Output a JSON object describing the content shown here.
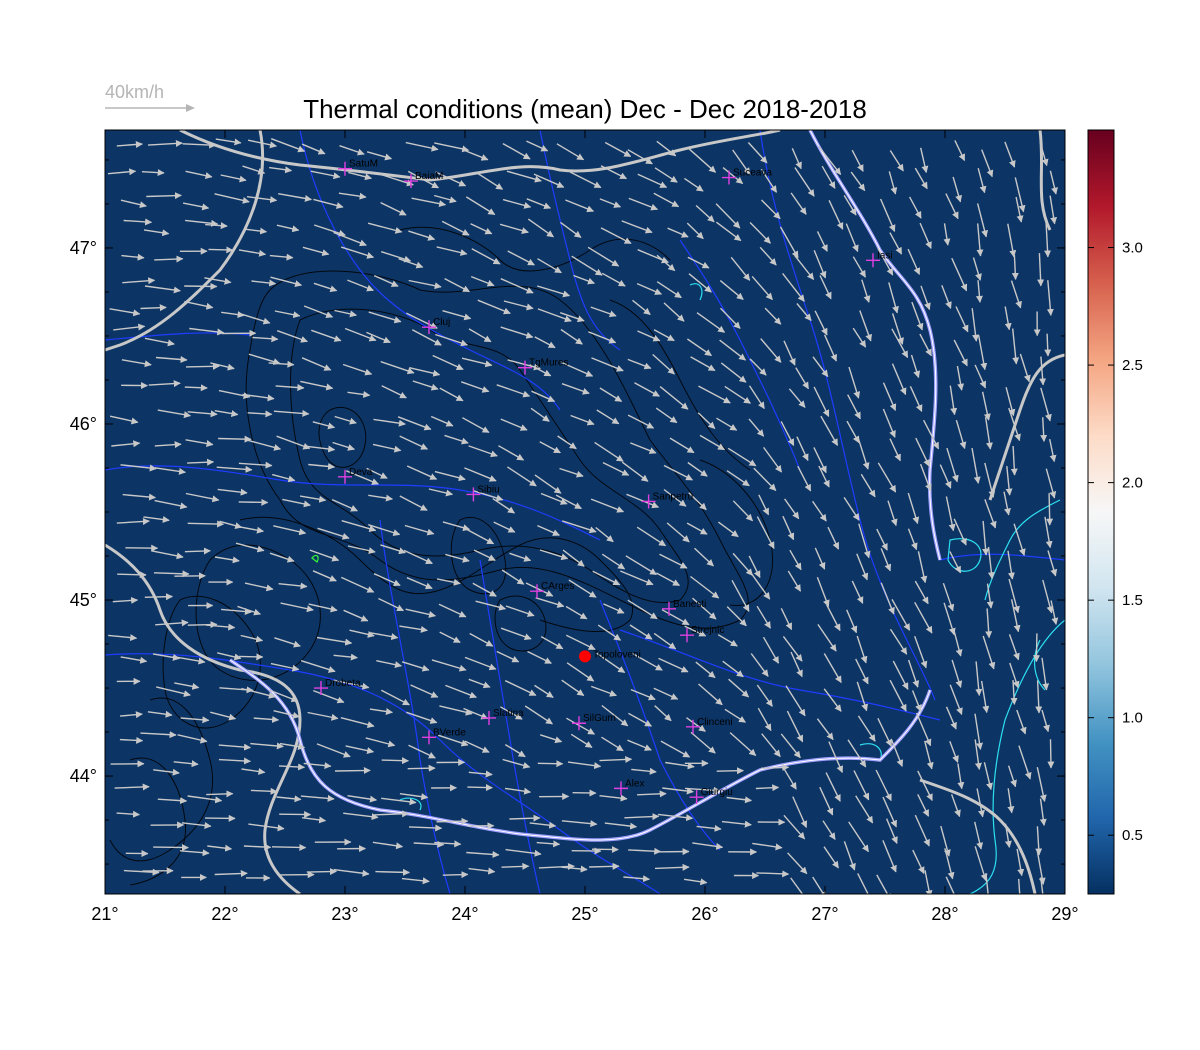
{
  "title": "Thermal conditions (mean) Dec - Dec  2018-2018",
  "wind_legend": {
    "label": "40km/h",
    "color": "#b5b5b5"
  },
  "map": {
    "lon_range": [
      21,
      29
    ],
    "lat_range": [
      43.33,
      47.67
    ],
    "background_color": "#0c3566",
    "x_ticks": [
      {
        "value": 21,
        "label": "21°"
      },
      {
        "value": 22,
        "label": "22°"
      },
      {
        "value": 23,
        "label": "23°"
      },
      {
        "value": 24,
        "label": "24°"
      },
      {
        "value": 25,
        "label": "25°"
      },
      {
        "value": 26,
        "label": "26°"
      },
      {
        "value": 27,
        "label": "27°"
      },
      {
        "value": 28,
        "label": "28°"
      },
      {
        "value": 29,
        "label": "29°"
      }
    ],
    "y_ticks": [
      {
        "value": 44,
        "label": "44°"
      },
      {
        "value": 45,
        "label": "45°"
      },
      {
        "value": 46,
        "label": "46°"
      },
      {
        "value": 47,
        "label": "47°"
      }
    ]
  },
  "cities": [
    {
      "name": "SatuM",
      "lon": 23.0,
      "lat": 47.45
    },
    {
      "name": "BaiaM",
      "lon": 23.55,
      "lat": 47.38
    },
    {
      "name": "Suceava",
      "lon": 26.2,
      "lat": 47.4
    },
    {
      "name": "Iasi",
      "lon": 27.4,
      "lat": 46.93
    },
    {
      "name": "Cluj",
      "lon": 23.7,
      "lat": 46.55
    },
    {
      "name": "TgMures",
      "lon": 24.5,
      "lat": 46.32
    },
    {
      "name": "Deva",
      "lon": 23.0,
      "lat": 45.7
    },
    {
      "name": "Sibiu",
      "lon": 24.07,
      "lat": 45.6
    },
    {
      "name": "Sanpetru",
      "lon": 25.53,
      "lat": 45.56
    },
    {
      "name": "CArges",
      "lon": 24.6,
      "lat": 45.05
    },
    {
      "name": "Banesti",
      "lon": 25.7,
      "lat": 44.95
    },
    {
      "name": "Strejnic",
      "lon": 25.85,
      "lat": 44.8
    },
    {
      "name": "Drobeta",
      "lon": 22.8,
      "lat": 44.5
    },
    {
      "name": "Slatina",
      "lon": 24.2,
      "lat": 44.33
    },
    {
      "name": "SilGum",
      "lon": 24.95,
      "lat": 44.3
    },
    {
      "name": "Clinceni",
      "lon": 25.9,
      "lat": 44.28
    },
    {
      "name": "BVerde",
      "lon": 23.7,
      "lat": 44.22
    },
    {
      "name": "Alex",
      "lon": 25.3,
      "lat": 43.93
    },
    {
      "name": "Giurgiu",
      "lon": 25.93,
      "lat": 43.88
    }
  ],
  "highlight": {
    "name": "Topoloveni",
    "lon": 25.0,
    "lat": 44.68,
    "color": "#ff0000"
  },
  "colorbar": {
    "min": 0.25,
    "max": 3.5,
    "ticks": [
      {
        "value": 0.5,
        "label": "0.5"
      },
      {
        "value": 1.0,
        "label": "1.0"
      },
      {
        "value": 1.5,
        "label": "1.5"
      },
      {
        "value": 2.0,
        "label": "2.0"
      },
      {
        "value": 2.5,
        "label": "2.5"
      },
      {
        "value": 3.0,
        "label": "3.0"
      }
    ],
    "colors": [
      "#053061",
      "#2166ac",
      "#4393c3",
      "#92c5de",
      "#d1e5f0",
      "#f7f7f7",
      "#fddbc7",
      "#f4a582",
      "#d6604d",
      "#b2182b",
      "#67001f"
    ]
  }
}
